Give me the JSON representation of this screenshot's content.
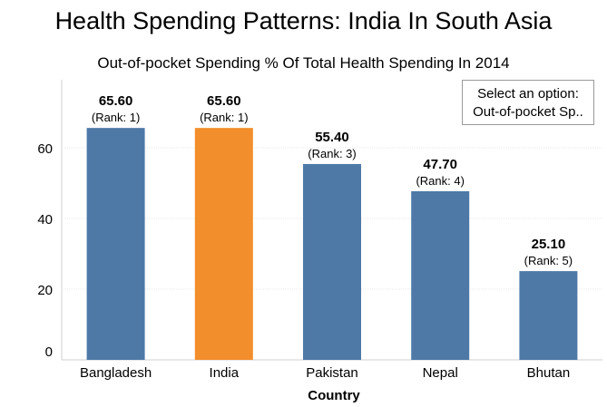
{
  "page": {
    "title": "Health Spending Patterns: India In South Asia",
    "subtitle": "Out-of-pocket Spending % Of Total Health Spending In 2014"
  },
  "selector": {
    "label": "Select an option:",
    "value": "Out-of-pocket Sp.."
  },
  "chart_data": {
    "type": "bar",
    "xlabel": "Country",
    "ylabel": "",
    "ylim": [
      0,
      70
    ],
    "yticks": [
      0,
      20,
      40,
      60
    ],
    "grid": true,
    "categories": [
      "Bangladesh",
      "India",
      "Pakistan",
      "Nepal",
      "Bhutan"
    ],
    "values": [
      65.6,
      65.6,
      55.4,
      47.7,
      25.1
    ],
    "value_labels": [
      "65.60",
      "65.60",
      "55.40",
      "47.70",
      "25.10"
    ],
    "rank_labels": [
      "(Rank: 1)",
      "(Rank: 1)",
      "(Rank: 3)",
      "(Rank: 4)",
      "(Rank: 5)"
    ],
    "colors": [
      "#4e79a7",
      "#f28e2b",
      "#4e79a7",
      "#4e79a7",
      "#4e79a7"
    ]
  }
}
